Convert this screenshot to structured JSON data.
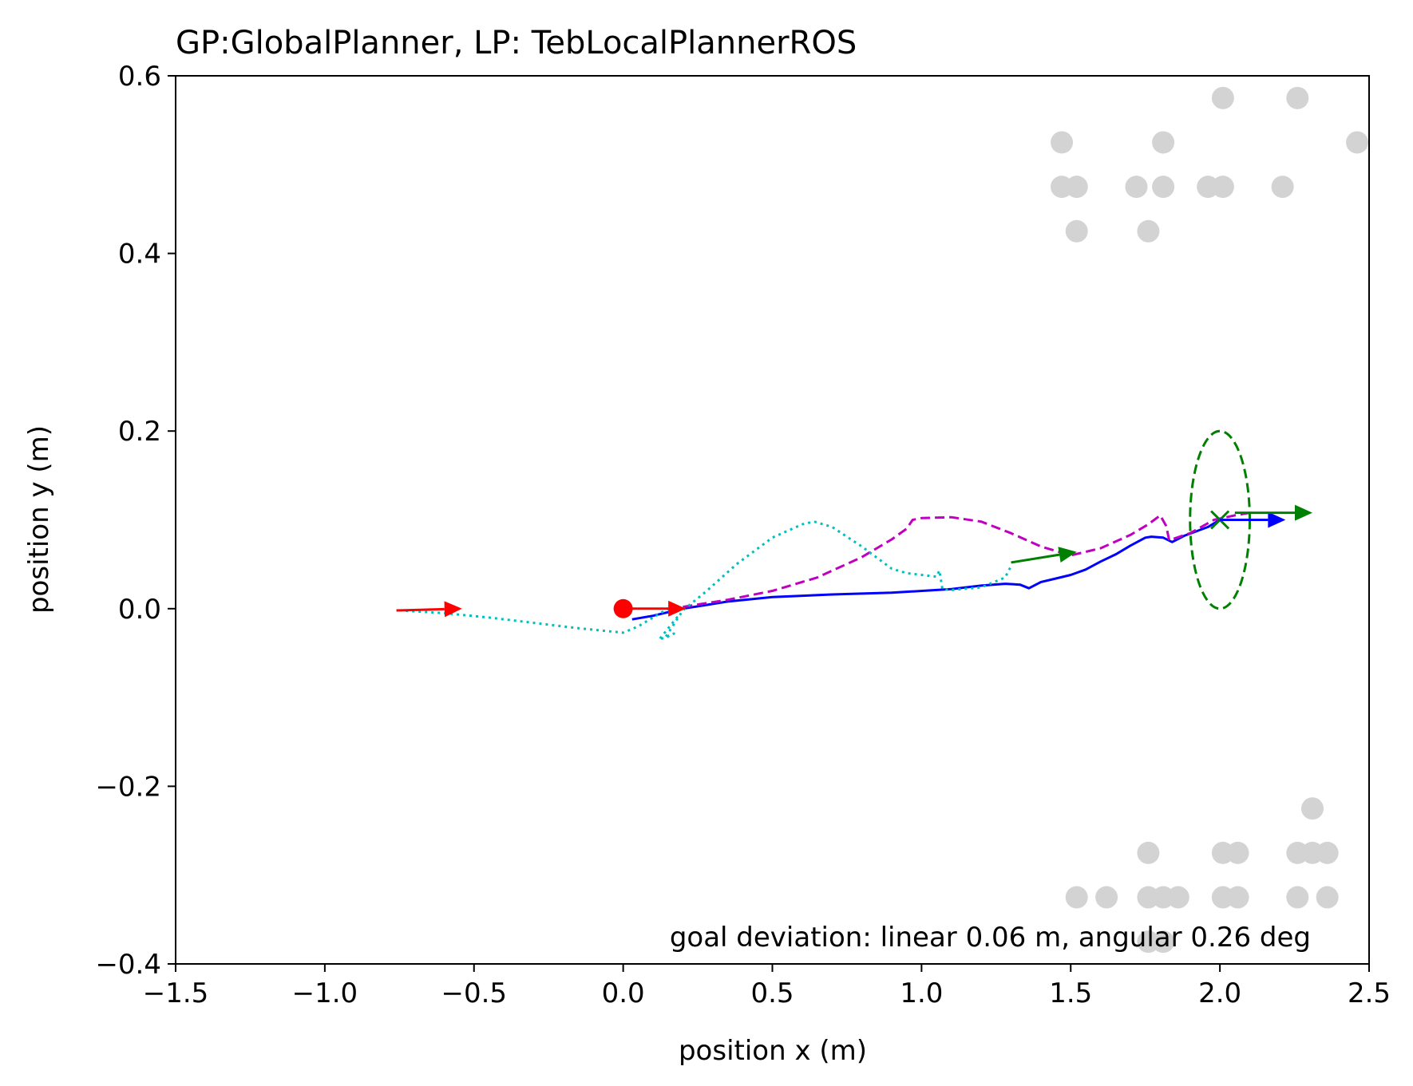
{
  "chart_data": {
    "type": "scatter",
    "title": "GP:GlobalPlanner, LP: TebLocalPlannerROS",
    "xlabel": "position x (m)",
    "ylabel": "position y (m)",
    "xlim": [
      -1.5,
      2.5
    ],
    "ylim": [
      -0.4,
      0.6
    ],
    "xticks": [
      -1.5,
      -1.0,
      -0.5,
      0.0,
      0.5,
      1.0,
      1.5,
      2.0,
      2.5
    ],
    "yticks": [
      -0.4,
      -0.2,
      0.0,
      0.2,
      0.4,
      0.6
    ],
    "xtick_labels": [
      "−1.5",
      "−1.0",
      "−0.5",
      "0.0",
      "0.5",
      "1.0",
      "1.5",
      "2.0",
      "2.5"
    ],
    "ytick_labels": [
      "−0.4",
      "−0.2",
      "0.0",
      "0.2",
      "0.4",
      "0.6"
    ],
    "annotation": "goal deviation: linear 0.06 m, angular 0.26 deg",
    "grid": false,
    "colors": {
      "robot_path": "#0000ff",
      "global_plan": "#bf00bf",
      "local_plan": "#00bfbf",
      "obstacles": "#d3d3d3",
      "start": "#ff0000",
      "goal": "#008000"
    },
    "obstacles": {
      "x": [
        1.47,
        1.52,
        1.47,
        1.52,
        1.81,
        1.72,
        1.81,
        1.76,
        2.01,
        1.96,
        2.01,
        2.26,
        2.21,
        2.46,
        1.76,
        2.01,
        2.06,
        2.26,
        2.31,
        2.36,
        2.31,
        1.52,
        1.62,
        1.76,
        1.81,
        1.86,
        2.01,
        2.06,
        2.26,
        2.36,
        1.76,
        1.81
      ],
      "y": [
        0.525,
        0.475,
        0.475,
        0.425,
        0.525,
        0.475,
        0.475,
        0.425,
        0.575,
        0.475,
        0.475,
        0.575,
        0.475,
        0.525,
        -0.275,
        -0.275,
        -0.275,
        -0.275,
        -0.275,
        -0.275,
        -0.225,
        -0.325,
        -0.325,
        -0.325,
        -0.325,
        -0.325,
        -0.325,
        -0.325,
        -0.325,
        -0.325,
        -0.375,
        -0.375
      ]
    },
    "start_point": {
      "x": 0.0,
      "y": 0.0
    },
    "goal_point": {
      "x": 2.0,
      "y": 0.1
    },
    "goal_ellipse": {
      "cx": 2.0,
      "cy": 0.1,
      "rx": 0.1,
      "ry": 0.1
    },
    "series": [
      {
        "style": "solid",
        "color": "#0000ff",
        "x": [
          0.03,
          0.1,
          0.2,
          0.35,
          0.5,
          0.7,
          0.9,
          1.1,
          1.2,
          1.28,
          1.33,
          1.36,
          1.4,
          1.45,
          1.5,
          1.55,
          1.6,
          1.65,
          1.7,
          1.75,
          1.77,
          1.81,
          1.84,
          1.88,
          1.92,
          1.96,
          2.0
        ],
        "y": [
          -0.012,
          -0.008,
          0.0,
          0.008,
          0.013,
          0.016,
          0.018,
          0.022,
          0.026,
          0.028,
          0.027,
          0.023,
          0.03,
          0.034,
          0.038,
          0.044,
          0.053,
          0.061,
          0.071,
          0.08,
          0.081,
          0.08,
          0.075,
          0.082,
          0.087,
          0.092,
          0.1
        ]
      },
      {
        "style": "dashed",
        "color": "#bf00bf",
        "x": [
          0.2,
          0.35,
          0.5,
          0.65,
          0.8,
          0.9,
          0.95,
          0.97,
          1.0,
          1.1,
          1.2,
          1.3,
          1.4,
          1.5,
          1.6,
          1.7,
          1.76,
          1.8,
          1.82,
          1.83,
          1.9,
          1.98,
          2.05,
          2.1
        ],
        "y": [
          0.002,
          0.01,
          0.02,
          0.035,
          0.058,
          0.078,
          0.09,
          0.1,
          0.102,
          0.103,
          0.098,
          0.085,
          0.07,
          0.06,
          0.068,
          0.083,
          0.095,
          0.105,
          0.093,
          0.077,
          0.085,
          0.1,
          0.105,
          0.108
        ]
      },
      {
        "style": "dotted",
        "color": "#00bfbf",
        "x": [
          -0.75,
          -0.6,
          -0.45,
          -0.3,
          -0.15,
          0.0,
          0.05,
          0.1,
          0.15,
          0.18,
          0.12,
          0.17,
          0.14,
          0.2,
          0.28,
          0.38,
          0.5,
          0.6,
          0.64,
          0.7,
          0.8,
          0.9,
          0.95,
          1.05,
          1.06,
          1.07,
          1.1,
          1.2,
          1.28,
          1.3
        ],
        "y": [
          -0.002,
          -0.005,
          -0.01,
          -0.016,
          -0.022,
          -0.027,
          -0.02,
          -0.01,
          0.0,
          -0.01,
          -0.035,
          -0.028,
          -0.033,
          -0.002,
          0.02,
          0.05,
          0.08,
          0.095,
          0.098,
          0.092,
          0.07,
          0.045,
          0.04,
          0.036,
          0.043,
          0.022,
          0.021,
          0.024,
          0.035,
          0.048
        ]
      }
    ],
    "arrows": [
      {
        "color": "#ff0000",
        "x": -0.76,
        "y": -0.002,
        "dx": 0.22,
        "dy": 0.002
      },
      {
        "color": "#ff0000",
        "x": 0.0,
        "y": 0.0,
        "dx": 0.21,
        "dy": 0.0
      },
      {
        "color": "#008000",
        "x": 1.3,
        "y": 0.052,
        "dx": 0.22,
        "dy": 0.012
      },
      {
        "color": "#0000ff",
        "x": 2.0,
        "y": 0.1,
        "dx": 0.22,
        "dy": 0.0
      },
      {
        "color": "#008000",
        "x": 2.05,
        "y": 0.108,
        "dx": 0.26,
        "dy": 0.0
      }
    ]
  }
}
